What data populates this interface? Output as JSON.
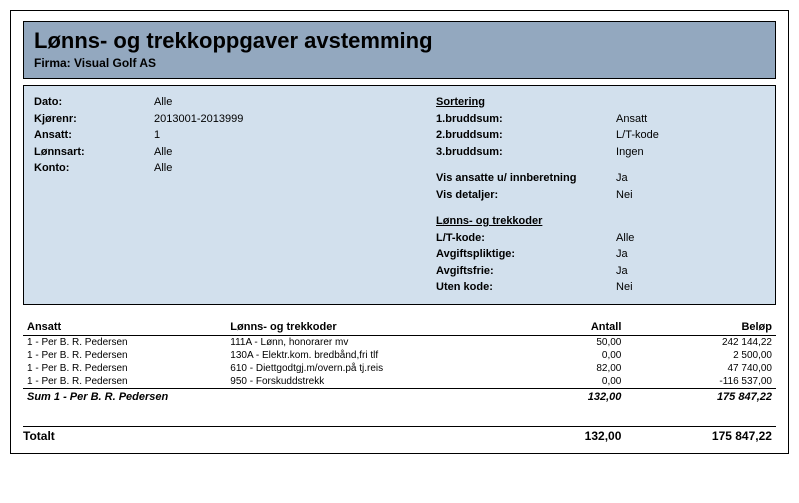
{
  "colors": {
    "title_bg": "#93a8bf",
    "info_bg": "#d2e0ed",
    "border": "#000000",
    "text": "#000000"
  },
  "header": {
    "title": "Lønns- og trekkoppgaver avstemming",
    "firma_label": "Firma: ",
    "firma_value": "Visual Golf AS"
  },
  "info_left": {
    "dato_label": "Dato:",
    "dato_value": "Alle",
    "kjorenr_label": "Kjørenr:",
    "kjorenr_value": "2013001-2013999",
    "ansatt_label": "Ansatt:",
    "ansatt_value": "1",
    "lonnsart_label": "Lønnsart:",
    "lonnsart_value": "Alle",
    "konto_label": "Konto:",
    "konto_value": "Alle"
  },
  "info_right": {
    "sortering_head": "Sortering",
    "b1_label": "1.bruddsum:",
    "b1_value": "Ansatt",
    "b2_label": "2.bruddsum:",
    "b2_value": "L/T-kode",
    "b3_label": "3.bruddsum:",
    "b3_value": "Ingen",
    "vis_ansatte_label": "Vis ansatte u/ innberetning",
    "vis_ansatte_value": "Ja",
    "vis_detaljer_label": "Vis detaljer:",
    "vis_detaljer_value": "Nei",
    "lt_head": "Lønns- og trekkoder",
    "ltkode_label": "L/T-kode:",
    "ltkode_value": "Alle",
    "avgpl_label": "Avgiftspliktige:",
    "avgpl_value": "Ja",
    "avgfri_label": "Avgiftsfrie:",
    "avgfri_value": "Ja",
    "uten_label": "Uten kode:",
    "uten_value": "Nei"
  },
  "table": {
    "h_ansatt": "Ansatt",
    "h_kode": "Lønns- og trekkoder",
    "h_antall": "Antall",
    "h_belop": "Beløp",
    "rows": [
      {
        "ansatt": "1 - Per B. R. Pedersen",
        "kode": "111A - Lønn, honorarer mv",
        "antall": "50,00",
        "belop": "242 144,22"
      },
      {
        "ansatt": "1 - Per B. R. Pedersen",
        "kode": "130A - Elektr.kom. bredbånd,fri tlf",
        "antall": "0,00",
        "belop": "2 500,00"
      },
      {
        "ansatt": "1 - Per B. R. Pedersen",
        "kode": "610 - Diettgodtgj.m/overn.på tj.reis",
        "antall": "82,00",
        "belop": "47 740,00"
      },
      {
        "ansatt": "1 - Per B. R. Pedersen",
        "kode": "950 - Forskuddstrekk",
        "antall": "0,00",
        "belop": "-116 537,00"
      }
    ],
    "sum_label": "Sum 1 - Per B. R. Pedersen",
    "sum_antall": "132,00",
    "sum_belop": "175  847,22"
  },
  "totalt": {
    "label": "Totalt",
    "antall": "132,00",
    "belop": "175  847,22"
  }
}
